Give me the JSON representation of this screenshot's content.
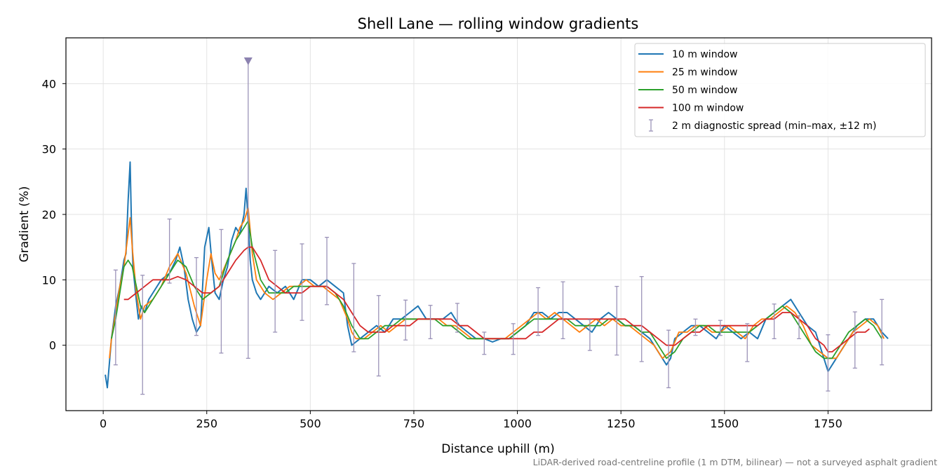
{
  "chart_data": {
    "type": "line",
    "title": "Shell Lane — rolling window gradients",
    "xlabel": "Distance uphill (m)",
    "ylabel": "Gradient (%)",
    "xlim": [
      -90,
      2000
    ],
    "ylim": [
      -10,
      47
    ],
    "xticks": [
      0,
      250,
      500,
      750,
      1000,
      1250,
      1500,
      1750
    ],
    "yticks": [
      0,
      10,
      20,
      30,
      40
    ],
    "grid": true,
    "legend_position": "top-right",
    "footnote": "LiDAR-derived road-centreline profile (1 m DTM, bilinear) — not a surveyed asphalt gradient",
    "series": [
      {
        "name": "10 m window",
        "color": "#1f77b4",
        "x": [
          5,
          10,
          20,
          30,
          40,
          50,
          55,
          60,
          65,
          68,
          72,
          78,
          85,
          92,
          100,
          110,
          120,
          140,
          160,
          175,
          185,
          195,
          205,
          215,
          225,
          235,
          245,
          255,
          262,
          270,
          280,
          290,
          300,
          310,
          320,
          330,
          340,
          345,
          350,
          355,
          360,
          370,
          380,
          390,
          400,
          420,
          440,
          460,
          480,
          500,
          520,
          540,
          560,
          580,
          590,
          600,
          610,
          620,
          640,
          660,
          680,
          700,
          720,
          740,
          760,
          780,
          800,
          820,
          840,
          860,
          880,
          900,
          920,
          940,
          960,
          980,
          1000,
          1020,
          1040,
          1060,
          1080,
          1100,
          1120,
          1140,
          1160,
          1180,
          1200,
          1220,
          1240,
          1260,
          1280,
          1300,
          1320,
          1340,
          1360,
          1370,
          1380,
          1400,
          1420,
          1440,
          1460,
          1480,
          1500,
          1520,
          1540,
          1560,
          1580,
          1600,
          1620,
          1640,
          1660,
          1680,
          1700,
          1720,
          1740,
          1750,
          1760,
          1780,
          1800,
          1820,
          1840,
          1860,
          1880,
          1895
        ],
        "y": [
          -4.5,
          -6.5,
          1,
          6,
          9,
          13,
          14,
          22,
          28,
          19,
          12,
          8,
          4,
          6,
          5,
          7,
          8,
          10,
          11,
          13,
          15,
          12,
          7,
          4,
          2,
          3,
          15,
          18,
          13,
          8,
          7,
          10,
          12,
          16,
          18,
          17,
          20,
          24,
          19,
          13,
          10,
          8,
          7,
          8,
          9,
          8,
          9,
          7,
          10,
          10,
          9,
          10,
          9,
          8,
          3,
          0,
          0.5,
          1,
          2,
          3,
          2,
          4,
          4,
          5,
          6,
          4,
          4,
          4,
          5,
          3,
          2,
          1,
          1,
          0.5,
          1,
          1,
          2,
          3,
          5,
          5,
          4,
          5,
          5,
          4,
          3,
          2,
          4,
          5,
          4,
          3,
          3,
          2,
          1,
          -1,
          -3,
          -2,
          1,
          2,
          3,
          3,
          2,
          1,
          3,
          2,
          1,
          2,
          1,
          4,
          5,
          6,
          7,
          5,
          3,
          2,
          -2,
          -4,
          -3,
          -1,
          1,
          3,
          4,
          4,
          2,
          1
        ]
      },
      {
        "name": "25 m window",
        "color": "#ff7f0e",
        "x": [
          15,
          20,
          30,
          40,
          50,
          60,
          65,
          70,
          80,
          90,
          100,
          120,
          140,
          160,
          180,
          200,
          220,
          235,
          250,
          260,
          270,
          280,
          300,
          320,
          330,
          340,
          350,
          360,
          370,
          390,
          410,
          430,
          450,
          470,
          490,
          510,
          530,
          550,
          570,
          590,
          600,
          610,
          630,
          650,
          670,
          690,
          710,
          730,
          750,
          770,
          790,
          810,
          830,
          850,
          870,
          890,
          910,
          930,
          950,
          970,
          990,
          1010,
          1030,
          1050,
          1070,
          1090,
          1110,
          1130,
          1150,
          1170,
          1190,
          1210,
          1230,
          1250,
          1270,
          1290,
          1310,
          1330,
          1350,
          1370,
          1390,
          1410,
          1430,
          1450,
          1470,
          1490,
          1510,
          1530,
          1550,
          1570,
          1590,
          1610,
          1630,
          1650,
          1670,
          1690,
          1710,
          1730,
          1750,
          1770,
          1790,
          1810,
          1830,
          1850,
          1870,
          1885
        ],
        "y": [
          -2,
          1,
          5,
          9,
          12,
          17,
          19.5,
          15,
          8,
          4,
          6,
          7,
          9,
          12,
          14,
          11,
          6,
          3,
          10,
          14,
          11,
          10,
          13,
          16,
          18,
          19,
          21,
          14,
          10,
          8,
          7,
          8,
          9,
          9,
          10,
          9,
          9,
          8,
          7,
          4,
          2,
          1,
          1,
          2,
          3,
          2,
          3,
          4,
          4,
          4,
          4,
          4,
          3,
          3,
          2,
          1,
          1,
          1,
          1,
          1,
          2,
          3,
          4,
          5,
          4,
          5,
          4,
          3,
          2,
          3,
          4,
          3,
          4,
          3,
          3,
          2,
          1,
          0,
          -2,
          -1,
          2,
          2,
          3,
          3,
          2,
          2,
          3,
          2,
          1,
          3,
          4,
          4,
          5,
          6,
          5,
          3,
          0,
          -1,
          -2,
          -2,
          0,
          2,
          3,
          4,
          3,
          1
        ]
      },
      {
        "name": "50 m window",
        "color": "#2ca02c",
        "x": [
          20,
          30,
          40,
          50,
          60,
          70,
          80,
          90,
          100,
          120,
          140,
          160,
          180,
          200,
          220,
          240,
          260,
          280,
          300,
          320,
          340,
          350,
          360,
          380,
          400,
          420,
          440,
          460,
          480,
          500,
          520,
          540,
          560,
          580,
          600,
          620,
          640,
          660,
          680,
          700,
          720,
          740,
          760,
          780,
          800,
          820,
          840,
          860,
          880,
          900,
          920,
          940,
          960,
          980,
          1000,
          1020,
          1040,
          1060,
          1080,
          1100,
          1120,
          1140,
          1160,
          1180,
          1200,
          1220,
          1240,
          1260,
          1280,
          1300,
          1320,
          1340,
          1360,
          1380,
          1400,
          1420,
          1440,
          1460,
          1480,
          1500,
          1520,
          1540,
          1560,
          1580,
          1600,
          1620,
          1640,
          1660,
          1680,
          1700,
          1720,
          1740,
          1760,
          1780,
          1800,
          1820,
          1840,
          1860,
          1880
        ],
        "y": [
          1,
          4,
          8,
          12,
          13,
          12,
          9,
          6,
          5,
          7,
          9,
          11,
          13,
          12,
          9,
          7,
          8,
          9,
          13,
          16,
          18,
          19,
          15,
          10,
          8,
          8,
          8,
          9,
          9,
          9,
          9,
          9,
          8,
          6,
          3,
          1,
          1,
          2,
          3,
          3,
          4,
          4,
          4,
          4,
          4,
          3,
          3,
          2,
          1,
          1,
          1,
          1,
          1,
          1,
          2,
          3,
          4,
          4,
          4,
          4,
          4,
          3,
          3,
          3,
          3,
          4,
          4,
          3,
          3,
          2,
          2,
          0,
          -2,
          -1,
          1,
          2,
          3,
          3,
          2,
          2,
          2,
          2,
          2,
          3,
          4,
          5,
          6,
          5,
          3,
          1,
          -1,
          -2,
          -2,
          0,
          2,
          3,
          4,
          3,
          1
        ]
      },
      {
        "name": "100 m window",
        "color": "#d62728",
        "x": [
          50,
          60,
          80,
          100,
          120,
          140,
          160,
          180,
          200,
          220,
          240,
          260,
          280,
          300,
          320,
          340,
          350,
          360,
          380,
          400,
          420,
          440,
          460,
          480,
          500,
          520,
          540,
          560,
          580,
          600,
          620,
          640,
          660,
          680,
          700,
          720,
          740,
          760,
          780,
          800,
          820,
          840,
          860,
          880,
          900,
          920,
          940,
          960,
          980,
          1000,
          1020,
          1040,
          1060,
          1080,
          1100,
          1120,
          1140,
          1160,
          1180,
          1200,
          1220,
          1240,
          1260,
          1280,
          1300,
          1320,
          1340,
          1360,
          1380,
          1400,
          1420,
          1440,
          1460,
          1480,
          1500,
          1520,
          1540,
          1560,
          1580,
          1600,
          1620,
          1640,
          1660,
          1680,
          1700,
          1720,
          1740,
          1750,
          1760,
          1780,
          1800,
          1820,
          1840,
          1850
        ],
        "y": [
          7,
          7,
          8,
          9,
          10,
          10,
          10,
          10.5,
          10,
          9,
          8,
          8,
          9,
          11,
          13,
          14.5,
          15,
          15,
          13,
          10,
          9,
          8,
          8,
          8,
          9,
          9,
          9,
          8,
          7,
          5,
          3,
          2,
          2,
          2,
          3,
          3,
          3,
          4,
          4,
          4,
          4,
          4,
          3,
          3,
          2,
          1,
          1,
          1,
          1,
          1,
          1,
          2,
          2,
          3,
          4,
          4,
          4,
          4,
          4,
          4,
          4,
          4,
          4,
          3,
          3,
          2,
          1,
          0,
          0,
          1,
          2,
          2,
          3,
          3,
          3,
          3,
          3,
          3,
          3,
          4,
          4,
          5,
          5,
          4,
          3,
          1,
          0,
          -1,
          -1,
          0,
          1,
          2,
          2,
          2.5
        ]
      }
    ],
    "errorbars": {
      "name": "2 m diagnostic spread (min–max, ±12 m)",
      "color": "#9b93b8",
      "x": [
        30,
        95,
        160,
        225,
        285,
        350,
        415,
        480,
        540,
        605,
        665,
        730,
        790,
        855,
        920,
        990,
        1050,
        1110,
        1175,
        1240,
        1300,
        1365,
        1430,
        1490,
        1555,
        1620,
        1680,
        1750,
        1815,
        1880
      ],
      "low": [
        -3,
        -7.5,
        9.5,
        1.5,
        -1.2,
        -2,
        2,
        3.8,
        6.2,
        -1,
        -4.7,
        0.8,
        1,
        2,
        -1.4,
        -1.4,
        1.5,
        1,
        -0.8,
        -1.5,
        -2.5,
        -6.5,
        1.5,
        1.5,
        -2.5,
        1,
        1,
        -7,
        -3.5,
        -3
      ],
      "high": [
        11.5,
        10.7,
        19.3,
        13.4,
        17.7,
        44,
        14.5,
        15.5,
        16.5,
        12.5,
        7.6,
        6.9,
        6.1,
        6.4,
        2,
        3.3,
        8.8,
        9.7,
        3.9,
        9,
        10.5,
        2.3,
        4,
        3.8,
        3.3,
        6.3,
        4.5,
        1.6,
        5.1,
        7
      ]
    }
  }
}
